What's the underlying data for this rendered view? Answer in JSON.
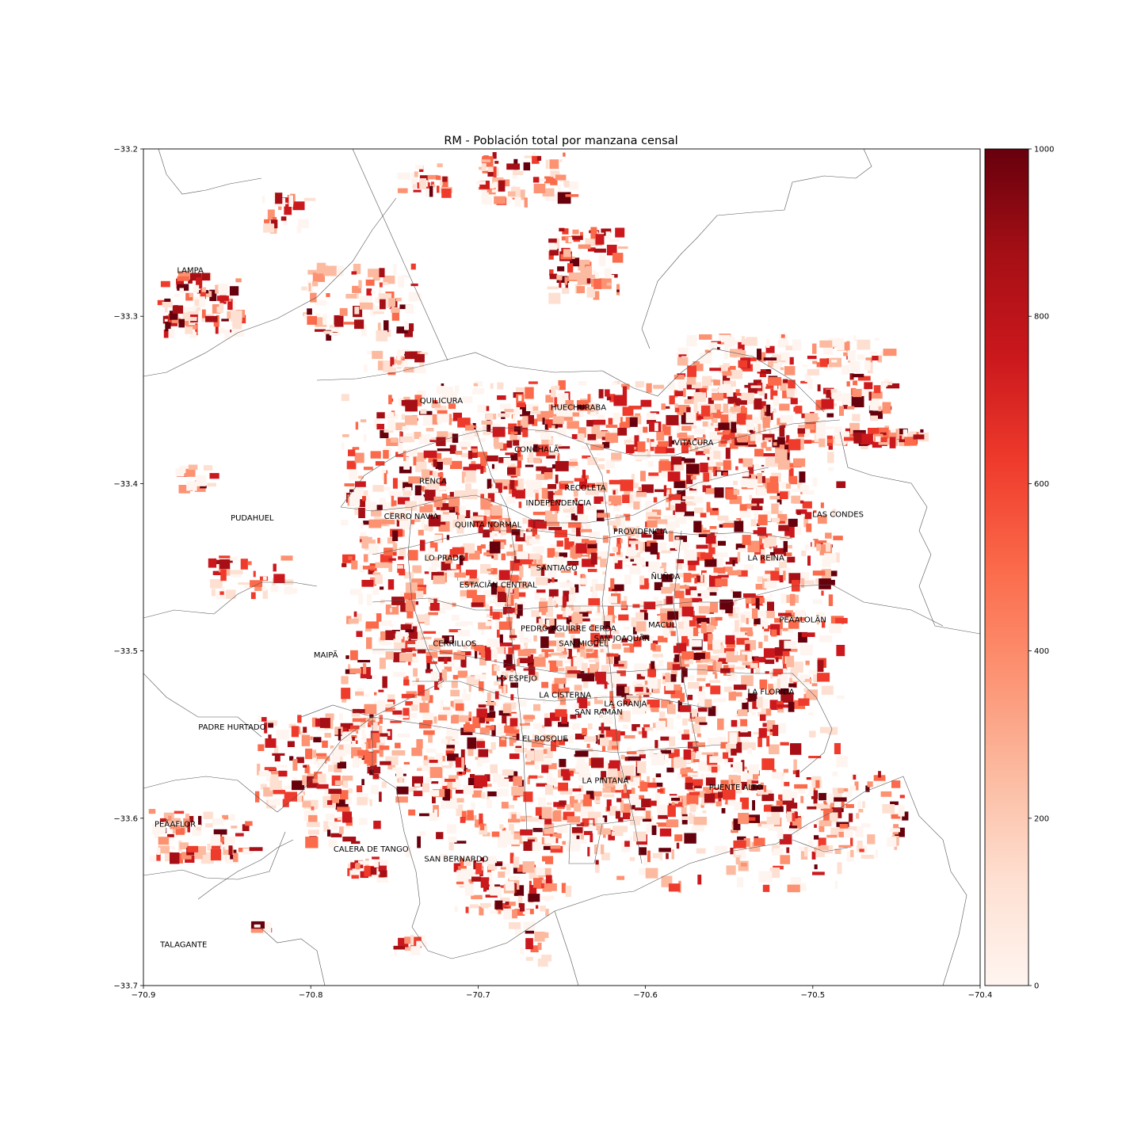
{
  "title": "RM - Población total por manzana censal",
  "x_axis": {
    "range": [
      -70.9,
      -70.4
    ],
    "ticks": [
      "-70.9",
      "-70.8",
      "-70.7",
      "-70.6",
      "-70.5",
      "-70.4"
    ]
  },
  "y_axis": {
    "range": [
      -33.7,
      -33.2
    ],
    "ticks": [
      "-33.2",
      "-33.3",
      "-33.4",
      "-33.5",
      "-33.6",
      "-33.7"
    ]
  },
  "colorbar": {
    "colormap": "Reds",
    "range": [
      0,
      1000
    ],
    "ticks": [
      "0",
      "200",
      "400",
      "600",
      "800",
      "1000"
    ],
    "colors": [
      "#fff5f0",
      "#fee0d2",
      "#fcbba1",
      "#fc9272",
      "#fb6a4a",
      "#ef3b2c",
      "#cb181d",
      "#a50f15",
      "#67000d"
    ]
  },
  "communes": [
    {
      "name": "LAMPA",
      "lon": -70.872,
      "lat": -33.274
    },
    {
      "name": "QUILICURA",
      "lon": -70.722,
      "lat": -33.352
    },
    {
      "name": "HUECHURABA",
      "lon": -70.64,
      "lat": -33.356
    },
    {
      "name": "CONCHALÃ",
      "lon": -70.665,
      "lat": -33.381
    },
    {
      "name": "VITACURA",
      "lon": -70.571,
      "lat": -33.377
    },
    {
      "name": "RENCA",
      "lon": -70.727,
      "lat": -33.4
    },
    {
      "name": "RECOLETA",
      "lon": -70.636,
      "lat": -33.404
    },
    {
      "name": "INDEPENDENCIA",
      "lon": -70.652,
      "lat": -33.413
    },
    {
      "name": "LAS CONDES",
      "lon": -70.485,
      "lat": -33.42
    },
    {
      "name": "PUDAHUEL",
      "lon": -70.835,
      "lat": -33.422
    },
    {
      "name": "CERRO NAVIA",
      "lon": -70.74,
      "lat": -33.421
    },
    {
      "name": "QUINTA NORMAL",
      "lon": -70.694,
      "lat": -33.426
    },
    {
      "name": "PROVIDENCIA",
      "lon": -70.603,
      "lat": -33.43
    },
    {
      "name": "LO PRADO",
      "lon": -70.72,
      "lat": -33.446
    },
    {
      "name": "LA REINA",
      "lon": -70.528,
      "lat": -33.446
    },
    {
      "name": "SANTIAGO",
      "lon": -70.653,
      "lat": -33.452
    },
    {
      "name": "ÑUÑOA",
      "lon": -70.588,
      "lat": -33.457
    },
    {
      "name": "ESTACIÃN CENTRAL",
      "lon": -70.688,
      "lat": -33.462
    },
    {
      "name": "PEÃALOLÃN",
      "lon": -70.506,
      "lat": -33.483
    },
    {
      "name": "MACUL",
      "lon": -70.59,
      "lat": -33.486
    },
    {
      "name": "PEDRO AGUIRRE CERDA",
      "lon": -70.646,
      "lat": -33.488
    },
    {
      "name": "SAN JOAQUÃN",
      "lon": -70.614,
      "lat": -33.494
    },
    {
      "name": "CERRILLOS",
      "lon": -70.714,
      "lat": -33.497
    },
    {
      "name": "SAN MIGUEL",
      "lon": -70.637,
      "lat": -33.497
    },
    {
      "name": "MAIPÃ",
      "lon": -70.791,
      "lat": -33.504
    },
    {
      "name": "LO ESPEJO",
      "lon": -70.677,
      "lat": -33.518
    },
    {
      "name": "LA FLORIDA",
      "lon": -70.525,
      "lat": -33.526
    },
    {
      "name": "LA CISTERNA",
      "lon": -70.648,
      "lat": -33.528
    },
    {
      "name": "LA GRANJA",
      "lon": -70.612,
      "lat": -33.533
    },
    {
      "name": "SAN RAMÃN",
      "lon": -70.628,
      "lat": -33.538
    },
    {
      "name": "PADRE HURTADO",
      "lon": -70.847,
      "lat": -33.547
    },
    {
      "name": "EL BOSQUE",
      "lon": -70.66,
      "lat": -33.554
    },
    {
      "name": "LA PINTANA",
      "lon": -70.624,
      "lat": -33.579
    },
    {
      "name": "PUENTE ALTO",
      "lon": -70.546,
      "lat": -33.583
    },
    {
      "name": "PEÃAFLOR",
      "lon": -70.881,
      "lat": -33.605
    },
    {
      "name": "CALERA DE TANGO",
      "lon": -70.764,
      "lat": -33.62
    },
    {
      "name": "SAN BERNARDO",
      "lon": -70.713,
      "lat": -33.626
    },
    {
      "name": "TALAGANTE",
      "lon": -70.876,
      "lat": -33.677
    }
  ]
}
